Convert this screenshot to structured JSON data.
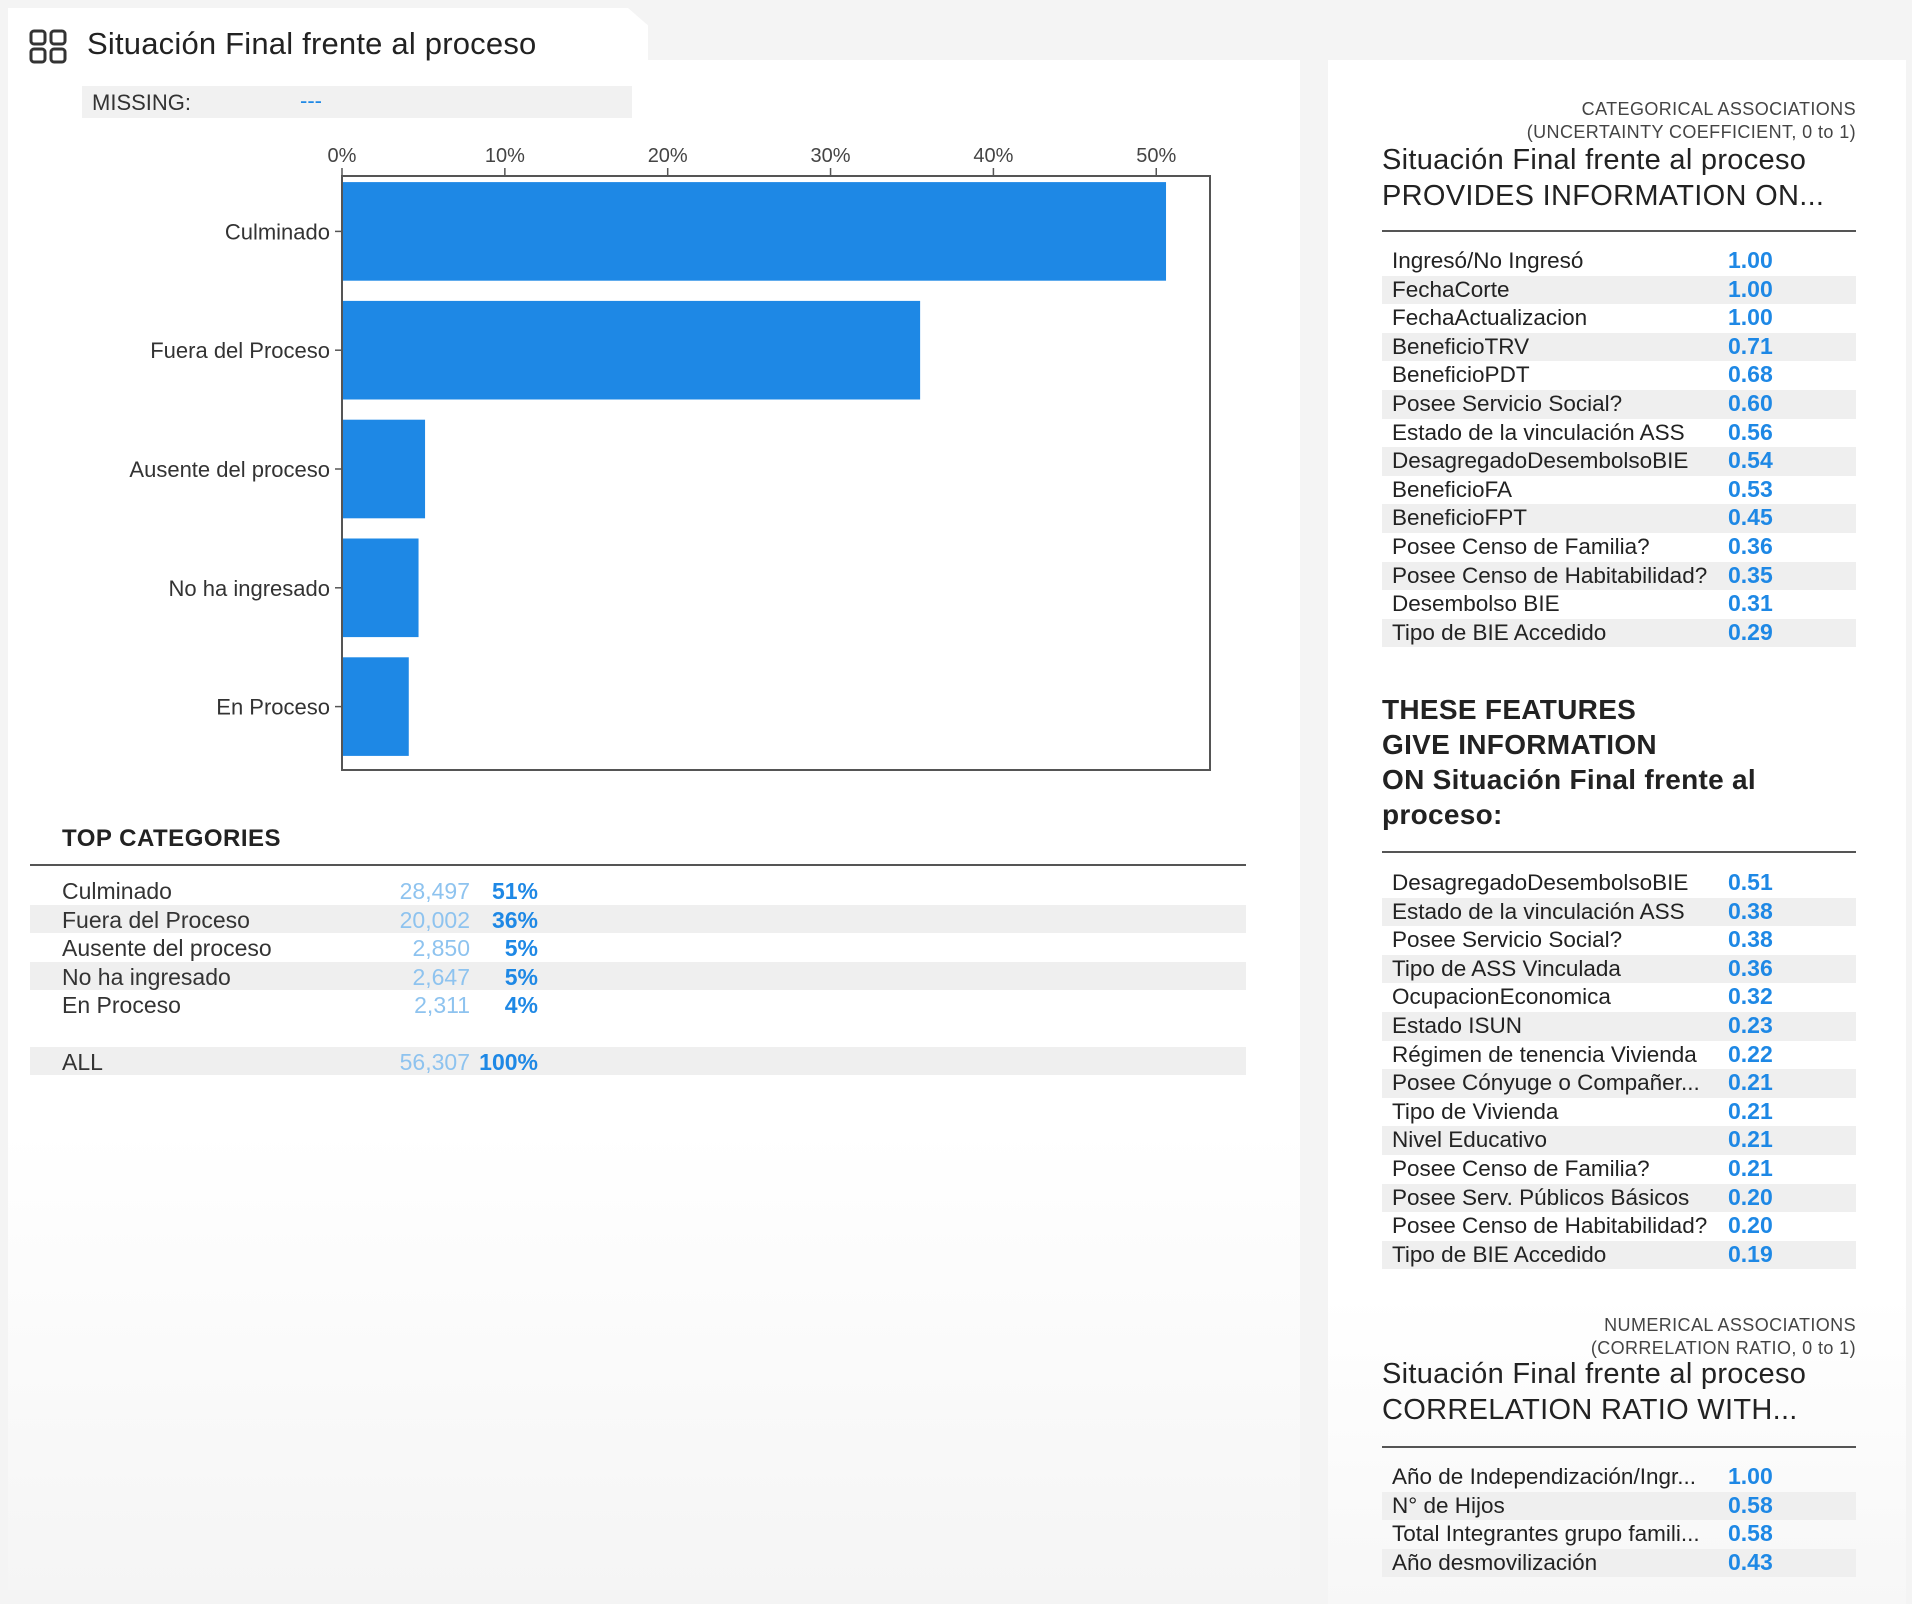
{
  "header": {
    "title": "Situación Final frente al proceso",
    "icon": "grid-icon"
  },
  "missing": {
    "label": "MISSING:",
    "value": "---"
  },
  "chart_data": {
    "type": "bar",
    "orientation": "horizontal",
    "categories": [
      "Culminado",
      "Fuera del Proceso",
      "Ausente del proceso",
      "No ha ingresado",
      "En Proceso"
    ],
    "values": [
      50.6,
      35.5,
      5.1,
      4.7,
      4.1
    ],
    "xlim": [
      0,
      53.3
    ],
    "xticks": [
      0,
      10,
      20,
      30,
      40,
      50
    ],
    "xtick_labels": [
      "0%",
      "10%",
      "20%",
      "30%",
      "40%",
      "50%"
    ],
    "bar_color": "#1e88e5",
    "axis_position": "top",
    "title": "",
    "xlabel": "",
    "ylabel": ""
  },
  "top_categories": {
    "title": "TOP CATEGORIES",
    "rows": [
      {
        "name": "Culminado",
        "count": "28,497",
        "pct": "51%"
      },
      {
        "name": "Fuera del Proceso",
        "count": "20,002",
        "pct": "36%"
      },
      {
        "name": "Ausente del proceso",
        "count": "2,850",
        "pct": "5%"
      },
      {
        "name": "No ha ingresado",
        "count": "2,647",
        "pct": "5%"
      },
      {
        "name": "En Proceso",
        "count": "2,311",
        "pct": "4%"
      }
    ],
    "all": {
      "name": "ALL",
      "count": "56,307",
      "pct": "100%"
    }
  },
  "categorical": {
    "caption1": "CATEGORICAL ASSOCIATIONS",
    "caption2": "(UNCERTAINTY COEFFICIENT, 0 to 1)",
    "heading1": "Situación Final frente al proceso",
    "heading2": "PROVIDES INFORMATION ON...",
    "items": [
      {
        "name": "Ingresó/No Ingresó",
        "value": "1.00"
      },
      {
        "name": "FechaCorte",
        "value": "1.00"
      },
      {
        "name": "FechaActualizacion",
        "value": "1.00"
      },
      {
        "name": "BeneficioTRV",
        "value": "0.71"
      },
      {
        "name": "BeneficioPDT",
        "value": "0.68"
      },
      {
        "name": "Posee Servicio Social?",
        "value": "0.60"
      },
      {
        "name": "Estado de la vinculación ASS",
        "value": "0.56"
      },
      {
        "name": "DesagregadoDesembolsoBIE",
        "value": "0.54"
      },
      {
        "name": "BeneficioFA",
        "value": "0.53"
      },
      {
        "name": "BeneficioFPT",
        "value": "0.45"
      },
      {
        "name": "Posee Censo de Familia?",
        "value": "0.36"
      },
      {
        "name": "Posee Censo de Habitabilidad?",
        "value": "0.35"
      },
      {
        "name": "Desembolso BIE",
        "value": "0.31"
      },
      {
        "name": "Tipo de BIE Accedido",
        "value": "0.29"
      }
    ]
  },
  "features": {
    "heading1": "THESE FEATURES",
    "heading2": "GIVE INFORMATION",
    "heading3": "ON Situación Final frente al",
    "heading4": "proceso:",
    "items": [
      {
        "name": "DesagregadoDesembolsoBIE",
        "value": "0.51"
      },
      {
        "name": "Estado de la vinculación ASS",
        "value": "0.38"
      },
      {
        "name": "Posee Servicio Social?",
        "value": "0.38"
      },
      {
        "name": "Tipo de ASS Vinculada",
        "value": "0.36"
      },
      {
        "name": "OcupacionEconomica",
        "value": "0.32"
      },
      {
        "name": "Estado ISUN",
        "value": "0.23"
      },
      {
        "name": "Régimen de tenencia Vivienda",
        "value": "0.22"
      },
      {
        "name": "Posee Cónyuge o Compañer...",
        "value": "0.21"
      },
      {
        "name": "Tipo de Vivienda",
        "value": "0.21"
      },
      {
        "name": "Nivel Educativo",
        "value": "0.21"
      },
      {
        "name": "Posee Censo de Familia?",
        "value": "0.21"
      },
      {
        "name": "Posee Serv. Públicos Básicos",
        "value": "0.20"
      },
      {
        "name": "Posee Censo de Habitabilidad?",
        "value": "0.20"
      },
      {
        "name": "Tipo de BIE Accedido",
        "value": "0.19"
      }
    ]
  },
  "numerical": {
    "caption1": "NUMERICAL ASSOCIATIONS",
    "caption2": "(CORRELATION RATIO, 0 to 1)",
    "heading1": "Situación Final frente al proceso",
    "heading2": "CORRELATION RATIO WITH...",
    "items": [
      {
        "name": "Año de Independización/Ingr...",
        "value": "1.00"
      },
      {
        "name": "N° de Hijos",
        "value": "0.58"
      },
      {
        "name": "Total Integrantes grupo famili...",
        "value": "0.58"
      },
      {
        "name": "Año desmovilización",
        "value": "0.43"
      }
    ]
  }
}
